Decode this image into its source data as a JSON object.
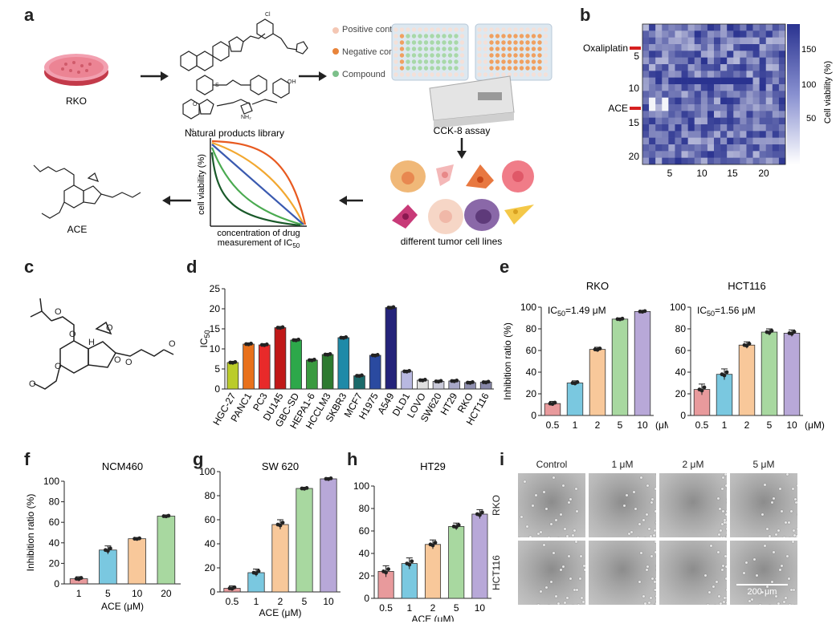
{
  "panels": {
    "a": "a",
    "b": "b",
    "c": "c",
    "d": "d",
    "e": "e",
    "f": "f",
    "g": "g",
    "h": "h",
    "i": "i"
  },
  "workflow": {
    "cell_line": "RKO",
    "library_label": "Natural products library",
    "legend": [
      "Positive control",
      "Negative control",
      "Compound"
    ],
    "legend_colors": [
      "#f4c7b4",
      "#e8843a",
      "#7cc08a"
    ],
    "assay_label": "CCK-8 assay",
    "tumor_label": "different tumor cell lines",
    "curve_ylabel": "cell viability (%)",
    "curve_xlabel": "concentration of drug",
    "ic50_text": "measurement of IC",
    "ic50_sub": "50",
    "compound_label": "ACE"
  },
  "heatmap": {
    "row_labels": [
      "Oxaliplatin",
      "ACE"
    ],
    "y_ticks": [
      "5",
      "10",
      "15",
      "20"
    ],
    "x_ticks": [
      "5",
      "10",
      "15",
      "20"
    ],
    "colorbar_ticks": [
      "150",
      "100",
      "50"
    ],
    "colorbar_label": "Cell viability (%)",
    "low_color": "#ffffff",
    "high_color": "#2a3390",
    "marker_color": "#d62020"
  },
  "chart_data": [
    {
      "id": "d",
      "type": "bar",
      "title": "",
      "ylabel": "IC50",
      "xlabel": "",
      "ylim": [
        0,
        25
      ],
      "yticks": [
        0,
        5,
        10,
        15,
        20,
        25
      ],
      "categories": [
        "HGC-27",
        "PANC1",
        "PC3",
        "DU145",
        "GBC-SD",
        "HEPA1-6",
        "HCCLM3",
        "SKBR3",
        "MCF7",
        "H1975",
        "A549",
        "DLD1",
        "LOVO",
        "SW620",
        "HT29",
        "RKO",
        "HCT116"
      ],
      "values": [
        6.6,
        11.2,
        11.0,
        15.3,
        12.2,
        7.2,
        8.6,
        12.8,
        3.3,
        8.4,
        20.3,
        4.4,
        2.2,
        1.9,
        2.0,
        1.6,
        1.7
      ],
      "colors": [
        "#bbcc2a",
        "#e8711c",
        "#e82a2a",
        "#c01818",
        "#2da84a",
        "#3a9a40",
        "#2d7a30",
        "#1f8aa8",
        "#1a6a6a",
        "#2a4aa0",
        "#24237a",
        "#b8b8e0",
        "#e0e0e0",
        "#c8c8d8",
        "#a8a8c8",
        "#9090b0",
        "#8888a8"
      ]
    },
    {
      "id": "e1",
      "type": "bar",
      "title": "RKO",
      "annotation": "IC50=1.49 μM",
      "ylabel": "Inhibition ratio (%)",
      "ylim": [
        0,
        100
      ],
      "yticks": [
        0,
        20,
        40,
        60,
        80,
        100
      ],
      "categories": [
        "0.5",
        "1",
        "2",
        "5",
        "10"
      ],
      "unit": "(μM)",
      "values": [
        11,
        30,
        61,
        89,
        96
      ],
      "errors": [
        2,
        2,
        2,
        1,
        1
      ]
    },
    {
      "id": "e2",
      "type": "bar",
      "title": "HCT116",
      "annotation": "IC50=1.56 μM",
      "ylabel": "",
      "ylim": [
        0,
        100
      ],
      "yticks": [
        0,
        20,
        40,
        60,
        80,
        100
      ],
      "categories": [
        "0.5",
        "1",
        "2",
        "5",
        "10"
      ],
      "unit": "(μM)",
      "values": [
        24,
        38,
        65,
        77,
        76
      ],
      "errors": [
        5,
        5,
        3,
        3,
        3
      ]
    },
    {
      "id": "f",
      "type": "bar",
      "title": "NCM460",
      "ylabel": "Inhibition ratio (%)",
      "xlabel": "ACE (μM)",
      "ylim": [
        0,
        100
      ],
      "yticks": [
        0,
        20,
        40,
        60,
        80,
        100
      ],
      "categories": [
        "1",
        "5",
        "10",
        "20"
      ],
      "values": [
        5,
        33,
        44,
        66
      ],
      "errors": [
        2,
        4,
        1,
        1
      ]
    },
    {
      "id": "g",
      "type": "bar",
      "title": "SW 620",
      "xlabel": "ACE (μM)",
      "ylim": [
        0,
        100
      ],
      "yticks": [
        0,
        20,
        40,
        60,
        80,
        100
      ],
      "categories": [
        "0.5",
        "1",
        "2",
        "5",
        "10"
      ],
      "values": [
        3,
        16,
        56,
        86,
        94
      ],
      "errors": [
        2,
        3,
        4,
        1,
        1
      ]
    },
    {
      "id": "h",
      "type": "bar",
      "title": "HT29",
      "xlabel": "ACE (μM)",
      "ylim": [
        0,
        100
      ],
      "yticks": [
        0,
        20,
        40,
        60,
        80,
        100
      ],
      "categories": [
        "0.5",
        "1",
        "2",
        "5",
        "10"
      ],
      "values": [
        24,
        31,
        48,
        64,
        75
      ],
      "errors": [
        5,
        5,
        4,
        3,
        4
      ]
    }
  ],
  "bar_palette": [
    "#e89a9c",
    "#7ac8e0",
    "#f8c89a",
    "#a8d8a0",
    "#b8a8d8"
  ],
  "microscopy": {
    "columns": [
      "Control",
      "1 μM",
      "2 μM",
      "5 μM"
    ],
    "rows": [
      "RKO",
      "HCT116"
    ],
    "scale_bar": "200 μm"
  }
}
